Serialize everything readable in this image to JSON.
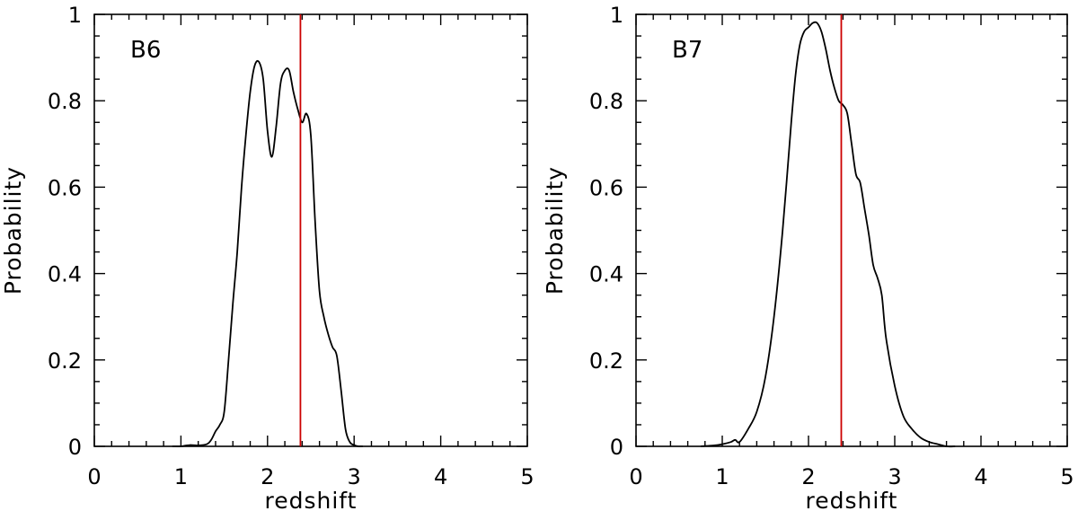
{
  "chart_data": [
    {
      "type": "line",
      "panel_label": "B6",
      "xlabel": "redshift",
      "ylabel": "Probability",
      "xlim": [
        0,
        5
      ],
      "ylim": [
        0,
        1
      ],
      "x_ticks": [
        "0",
        "1",
        "2",
        "3",
        "4",
        "5"
      ],
      "y_ticks": [
        "0",
        "0.2",
        "0.4",
        "0.6",
        "0.8",
        "1"
      ],
      "reference_line_x": 2.38,
      "reference_line_color": "#cc0000",
      "line_color": "#000000",
      "series": [
        {
          "x": [
            0.9,
            1.0,
            1.1,
            1.2,
            1.3,
            1.35,
            1.4,
            1.45,
            1.5,
            1.55,
            1.6,
            1.65,
            1.7,
            1.75,
            1.8,
            1.85,
            1.9,
            1.95,
            2.0,
            2.05,
            2.1,
            2.15,
            2.2,
            2.25,
            2.3,
            2.35,
            2.4,
            2.45,
            2.5,
            2.55,
            2.6,
            2.65,
            2.7,
            2.75,
            2.8,
            2.85,
            2.9,
            2.95,
            3.0,
            3.05,
            3.1
          ],
          "y": [
            0.0,
            0.0,
            0.003,
            0.002,
            0.005,
            0.015,
            0.035,
            0.05,
            0.08,
            0.2,
            0.33,
            0.45,
            0.6,
            0.72,
            0.82,
            0.88,
            0.89,
            0.85,
            0.73,
            0.67,
            0.74,
            0.84,
            0.87,
            0.87,
            0.82,
            0.78,
            0.75,
            0.77,
            0.72,
            0.52,
            0.36,
            0.3,
            0.26,
            0.23,
            0.21,
            0.13,
            0.04,
            0.01,
            0.003,
            0.0,
            0.0
          ]
        }
      ]
    },
    {
      "type": "line",
      "panel_label": "B7",
      "xlabel": "redshift",
      "ylabel": "Probability",
      "xlim": [
        0,
        5
      ],
      "ylim": [
        0,
        1
      ],
      "x_ticks": [
        "0",
        "1",
        "2",
        "3",
        "4",
        "5"
      ],
      "y_ticks": [
        "0",
        "0.2",
        "0.4",
        "0.6",
        "0.8",
        "1"
      ],
      "reference_line_x": 2.38,
      "reference_line_color": "#cc0000",
      "line_color": "#000000",
      "series": [
        {
          "x": [
            0.75,
            0.9,
            1.0,
            1.1,
            1.15,
            1.2,
            1.3,
            1.4,
            1.5,
            1.6,
            1.7,
            1.8,
            1.85,
            1.9,
            1.95,
            2.0,
            2.05,
            2.1,
            2.15,
            2.2,
            2.25,
            2.3,
            2.35,
            2.4,
            2.45,
            2.5,
            2.55,
            2.6,
            2.65,
            2.7,
            2.75,
            2.8,
            2.85,
            2.9,
            3.0,
            3.1,
            3.2,
            3.3,
            3.4,
            3.5,
            3.6,
            3.7
          ],
          "y": [
            0.0,
            0.002,
            0.005,
            0.01,
            0.015,
            0.01,
            0.04,
            0.08,
            0.16,
            0.3,
            0.5,
            0.75,
            0.86,
            0.93,
            0.96,
            0.97,
            0.98,
            0.98,
            0.96,
            0.92,
            0.87,
            0.83,
            0.8,
            0.79,
            0.77,
            0.7,
            0.63,
            0.61,
            0.55,
            0.49,
            0.42,
            0.39,
            0.35,
            0.25,
            0.14,
            0.07,
            0.04,
            0.02,
            0.01,
            0.005,
            0.0,
            0.0
          ]
        }
      ]
    }
  ]
}
